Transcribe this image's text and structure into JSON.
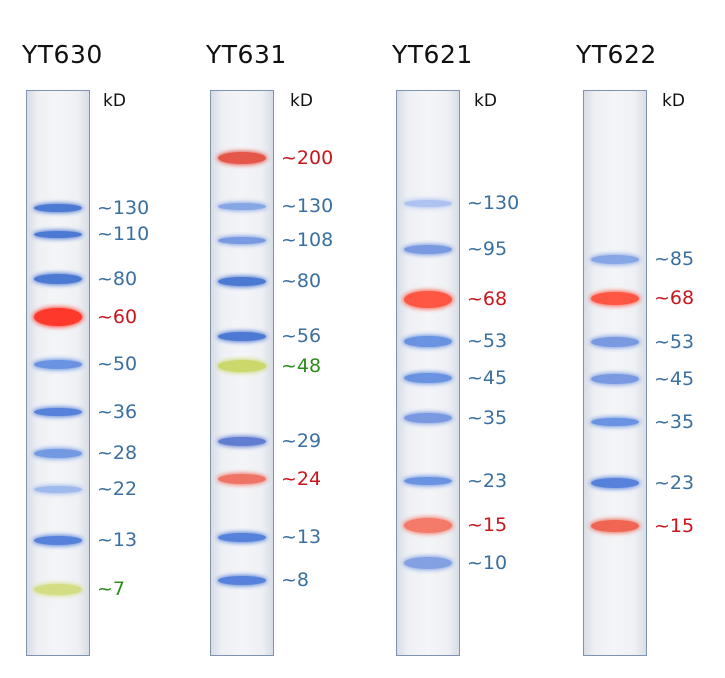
{
  "units": "kD",
  "blue": "#3a6f9f",
  "red": "#c8161d",
  "green": "#2e8b1f",
  "ladders": [
    {
      "name": "YT630",
      "bands": [
        {
          "label": "~130",
          "color": "blue",
          "band": "#3f6fd0"
        },
        {
          "label": "~110",
          "color": "blue",
          "band": "#3f6fd0"
        },
        {
          "label": "~80",
          "color": "blue",
          "band": "#3f6fd0"
        },
        {
          "label": "~60",
          "color": "red",
          "band": "#ff2a1a"
        },
        {
          "label": "~50",
          "color": "blue",
          "band": "#5f8be0"
        },
        {
          "label": "~36",
          "color": "blue",
          "band": "#4a78d8"
        },
        {
          "label": "~28",
          "color": "blue",
          "band": "#6a92e2"
        },
        {
          "label": "~22",
          "color": "blue",
          "band": "#9ab5ec"
        },
        {
          "label": "~13",
          "color": "blue",
          "band": "#4a78d8"
        },
        {
          "label": "~7",
          "color": "green",
          "band": "#d2dc7a"
        }
      ]
    },
    {
      "name": "YT631",
      "bands": [
        {
          "label": "~200",
          "color": "red",
          "band": "#e44a3a"
        },
        {
          "label": "~130",
          "color": "blue",
          "band": "#7fa0e4"
        },
        {
          "label": "~108",
          "color": "blue",
          "band": "#6f92e0"
        },
        {
          "label": "~80",
          "color": "blue",
          "band": "#3f6fd0"
        },
        {
          "label": "~56",
          "color": "blue",
          "band": "#3f6fd0"
        },
        {
          "label": "~48",
          "color": "green",
          "band": "#c9d660"
        },
        {
          "label": "~29",
          "color": "blue",
          "band": "#5574d0"
        },
        {
          "label": "~24",
          "color": "red",
          "band": "#ef6a5a"
        },
        {
          "label": "~13",
          "color": "blue",
          "band": "#4a78d8"
        },
        {
          "label": "~8",
          "color": "blue",
          "band": "#4a78d8"
        }
      ]
    },
    {
      "name": "YT621",
      "bands": [
        {
          "label": "~130",
          "color": "blue",
          "band": "#a9bff0"
        },
        {
          "label": "~95",
          "color": "blue",
          "band": "#6f92e0"
        },
        {
          "label": "~68",
          "color": "red",
          "band": "#ff4a35"
        },
        {
          "label": "~53",
          "color": "blue",
          "band": "#5f8be0"
        },
        {
          "label": "~45",
          "color": "blue",
          "band": "#5f8be0"
        },
        {
          "label": "~35",
          "color": "blue",
          "band": "#6f92e0"
        },
        {
          "label": "~23",
          "color": "blue",
          "band": "#5f8be0"
        },
        {
          "label": "~15",
          "color": "red",
          "band": "#f5705e"
        },
        {
          "label": "~10",
          "color": "blue",
          "band": "#7a9ae2"
        }
      ]
    },
    {
      "name": "YT622",
      "bands": [
        {
          "label": "~85",
          "color": "blue",
          "band": "#7fa0e4"
        },
        {
          "label": "~68",
          "color": "red",
          "band": "#ff4a35"
        },
        {
          "label": "~53",
          "color": "blue",
          "band": "#6f92e0"
        },
        {
          "label": "~45",
          "color": "blue",
          "band": "#6f92e0"
        },
        {
          "label": "~35",
          "color": "blue",
          "band": "#5f8be0"
        },
        {
          "label": "~23",
          "color": "blue",
          "band": "#4a78d8"
        },
        {
          "label": "~15",
          "color": "red",
          "band": "#f05a45"
        }
      ]
    }
  ]
}
